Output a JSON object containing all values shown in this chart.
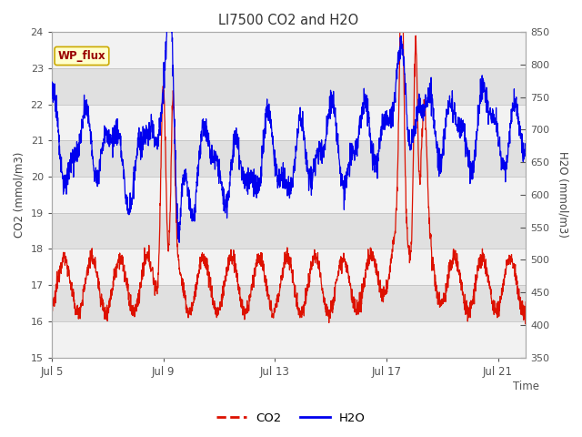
{
  "title": "LI7500 CO2 and H2O",
  "xlabel": "Time",
  "ylabel_left": "CO2 (mmol/m3)",
  "ylabel_right": "H2O (mmol/m3)",
  "ylim_left": [
    15.0,
    24.0
  ],
  "ylim_right": [
    350,
    850
  ],
  "x_tick_labels": [
    "Jul 5",
    "Jul 9",
    "Jul 13",
    "Jul 17",
    "Jul 21"
  ],
  "x_tick_positions": [
    0,
    4,
    8,
    12,
    16
  ],
  "annotation_text": "WP_flux",
  "annotation_bg": "#FFFFCC",
  "annotation_border": "#CCAA00",
  "annotation_text_color": "#990000",
  "co2_color": "#DD1100",
  "h2o_color": "#0000EE",
  "bg_color": "#FFFFFF",
  "grid_color": "#CCCCCC",
  "stripe_color_dark": "#E0E0E0",
  "stripe_color_light": "#F2F2F2",
  "legend_co2": "CO2",
  "legend_h2o": "H2O",
  "total_days": 17,
  "figsize": [
    6.4,
    4.8
  ],
  "dpi": 100
}
